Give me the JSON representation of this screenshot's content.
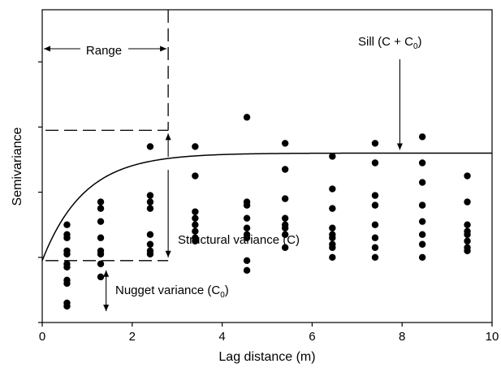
{
  "chart_data": {
    "type": "scatter",
    "xlabel": "Lag distance (m)",
    "ylabel": "Semivariance",
    "xlim": [
      0,
      10
    ],
    "ylim": [
      0,
      4.8
    ],
    "x_ticks": [
      "0",
      "2",
      "4",
      "6",
      "8",
      "10"
    ],
    "grid": false,
    "model": {
      "type": "exponential",
      "nugget": 0.95,
      "sill": 2.6,
      "range": 2.8
    },
    "points": [
      {
        "x": 0.55,
        "values": [
          0.25,
          0.3,
          0.6,
          0.65,
          0.85,
          0.9,
          1.05,
          1.1,
          1.3,
          1.35,
          1.5
        ]
      },
      {
        "x": 1.3,
        "values": [
          0.7,
          0.9,
          1.05,
          1.1,
          1.3,
          1.55,
          1.75,
          1.85
        ]
      },
      {
        "x": 2.4,
        "values": [
          1.05,
          1.1,
          1.2,
          1.35,
          1.75,
          1.85,
          1.95,
          2.7
        ]
      },
      {
        "x": 3.4,
        "values": [
          1.25,
          1.3,
          1.4,
          1.5,
          1.6,
          1.7,
          2.25,
          2.7
        ]
      },
      {
        "x": 4.55,
        "values": [
          0.8,
          0.95,
          1.3,
          1.35,
          1.45,
          1.6,
          1.8,
          1.85,
          3.15
        ]
      },
      {
        "x": 5.4,
        "values": [
          1.15,
          1.35,
          1.45,
          1.5,
          1.6,
          1.9,
          2.35,
          2.75
        ]
      },
      {
        "x": 6.45,
        "values": [
          1.0,
          1.15,
          1.2,
          1.3,
          1.35,
          1.45,
          1.75,
          2.05,
          2.55
        ]
      },
      {
        "x": 7.4,
        "values": [
          1.0,
          1.15,
          1.3,
          1.5,
          1.8,
          1.95,
          2.45,
          2.75
        ]
      },
      {
        "x": 8.45,
        "values": [
          1.0,
          1.2,
          1.35,
          1.55,
          1.8,
          2.15,
          2.45,
          2.85
        ]
      },
      {
        "x": 9.45,
        "values": [
          1.1,
          1.15,
          1.25,
          1.35,
          1.4,
          1.5,
          1.85,
          2.25
        ]
      }
    ],
    "annotations": {
      "range": "Range",
      "sill_main": "Sill (C + C",
      "sill_sub": "0",
      "sill_close": ")",
      "structural": "Structural variance (C)",
      "nugget_main": "Nugget variance (C",
      "nugget_sub": "0",
      "nugget_close": ")"
    }
  }
}
